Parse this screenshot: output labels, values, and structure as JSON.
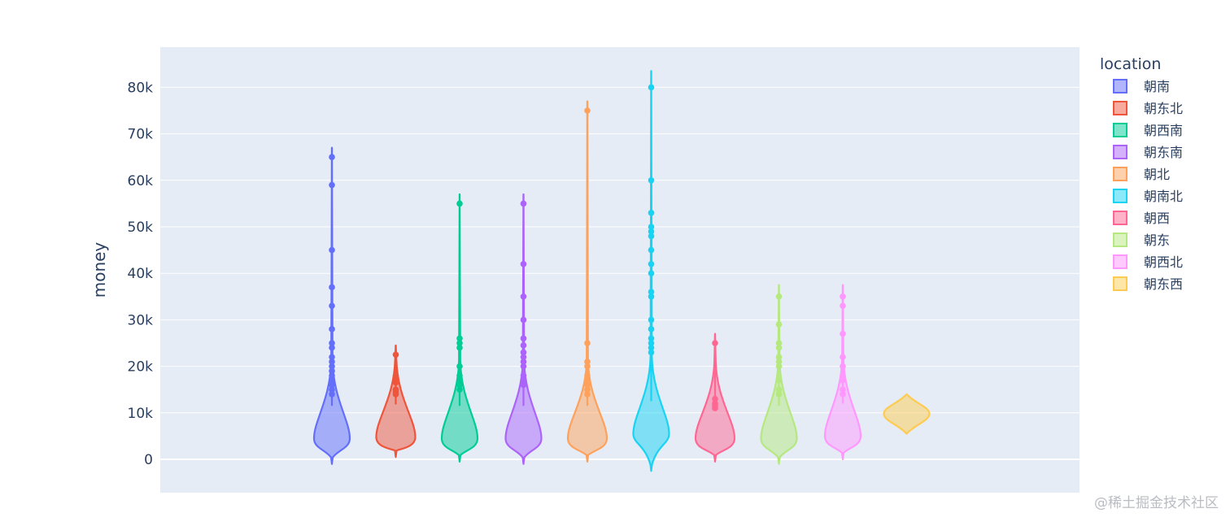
{
  "chart_data": {
    "type": "violin",
    "ylabel": "money",
    "ylim": [
      -7000,
      88000
    ],
    "yticks": [
      0,
      10000,
      20000,
      30000,
      40000,
      50000,
      60000,
      70000,
      80000
    ],
    "ytick_labels": [
      "0",
      "10k",
      "20k",
      "30k",
      "40k",
      "50k",
      "60k",
      "70k",
      "80k"
    ],
    "grid": true,
    "plot_background": "#e5ecf6",
    "legend_title": "location",
    "legend_position": "right",
    "series": [
      {
        "name": "朝南",
        "color": "#636efa",
        "min": -1000,
        "max": 67000,
        "median": 4500,
        "hw": 22,
        "points": [
          65000,
          59000,
          45000,
          37000,
          33000,
          28000,
          25000,
          24000,
          22000,
          21000,
          20000,
          19000,
          18000,
          17000,
          16000,
          15000,
          14000
        ]
      },
      {
        "name": "朝东北",
        "color": "#ef553b",
        "min": 500,
        "max": 24500,
        "median": 4800,
        "hw": 24,
        "points": [
          22500,
          18000,
          17000,
          16500,
          15000,
          14500,
          14000
        ]
      },
      {
        "name": "朝西南",
        "color": "#00cc96",
        "min": -500,
        "max": 57000,
        "median": 4500,
        "hw": 22,
        "points": [
          55000,
          26000,
          25000,
          24000,
          20000,
          18000,
          17000,
          16000,
          15000
        ]
      },
      {
        "name": "朝东南",
        "color": "#ab63fa",
        "min": -1000,
        "max": 57000,
        "median": 4500,
        "hw": 22,
        "points": [
          55000,
          42000,
          35000,
          30000,
          26000,
          24500,
          23000,
          22000,
          21000,
          20000,
          18000,
          17000,
          16000
        ]
      },
      {
        "name": "朝北",
        "color": "#ffa15a",
        "min": -500,
        "max": 77000,
        "median": 4500,
        "hw": 24,
        "points": [
          75000,
          25000,
          21000,
          20000,
          18000,
          17000,
          16000,
          15000,
          14000
        ]
      },
      {
        "name": "朝南北",
        "color": "#19d3f3",
        "min": -2500,
        "max": 83500,
        "median": 5500,
        "hw": 22,
        "points": [
          80000,
          60000,
          53000,
          50000,
          49000,
          48000,
          45000,
          42000,
          40000,
          36000,
          35000,
          30000,
          28000,
          26000,
          25000,
          24000,
          23000
        ]
      },
      {
        "name": "朝西",
        "color": "#ff6692",
        "min": -500,
        "max": 27000,
        "median": 4500,
        "hw": 24,
        "points": [
          25000,
          13000,
          12000,
          11500,
          11000
        ]
      },
      {
        "name": "朝东",
        "color": "#b6e880",
        "min": -1000,
        "max": 37500,
        "median": 4500,
        "hw": 22,
        "points": [
          35000,
          29000,
          25000,
          24000,
          22000,
          21000,
          20000,
          17000,
          15000,
          14000
        ]
      },
      {
        "name": "朝西北",
        "color": "#ff97ff",
        "min": 0,
        "max": 37500,
        "median": 5000,
        "hw": 22,
        "points": [
          35000,
          33000,
          27000,
          22000,
          20000,
          18000,
          17000,
          15000,
          14000
        ]
      },
      {
        "name": "朝东西",
        "color": "#fecb52",
        "min": 5500,
        "max": 14000,
        "median": 9800,
        "hw": 28,
        "points": []
      }
    ]
  },
  "watermark": "@稀土掘金技术社区"
}
